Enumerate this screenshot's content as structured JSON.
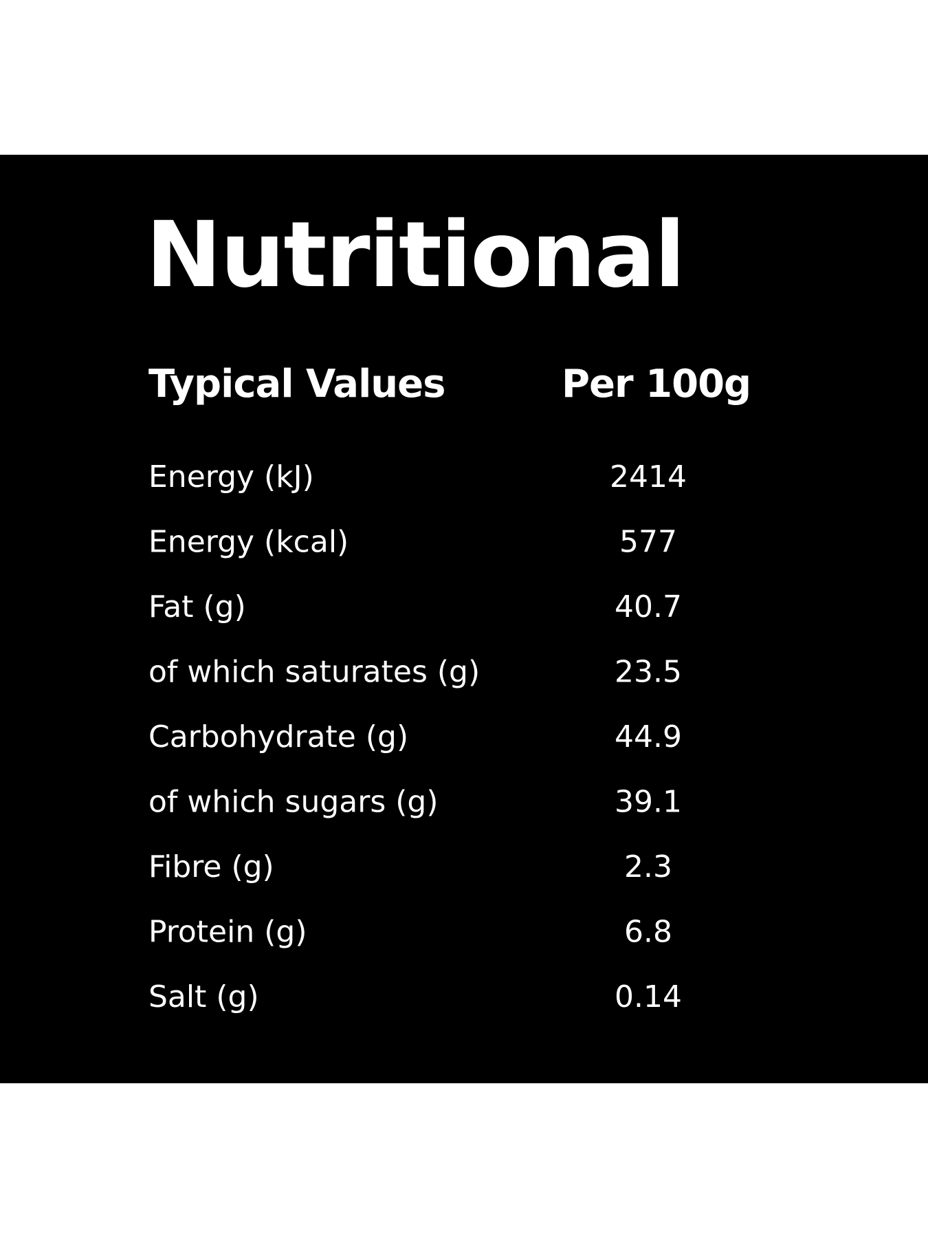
{
  "title": "Nutritional",
  "table": {
    "header": [
      "Typical Values",
      "Per 100g"
    ],
    "rows": [
      [
        "Energy (kJ)",
        "2414"
      ],
      [
        "Energy (kcal)",
        "577"
      ],
      [
        "Fat (g)",
        "40.7"
      ],
      [
        "of which saturates (g)",
        "23.5"
      ],
      [
        "Carbohydrate (g)",
        "44.9"
      ],
      [
        "of which sugars (g)",
        "39.1"
      ],
      [
        "Fibre (g)",
        "2.3"
      ],
      [
        "Protein (g)",
        "6.8"
      ],
      [
        "Salt (g)",
        "0.14"
      ]
    ]
  }
}
